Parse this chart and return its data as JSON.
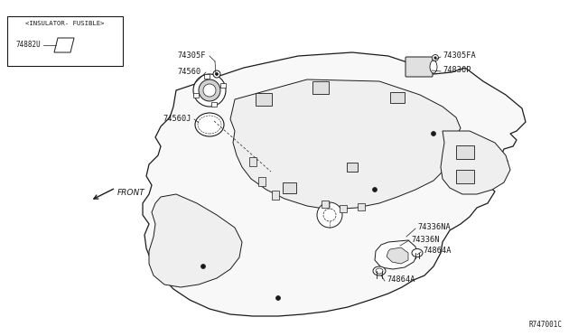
{
  "bg_color": "#ffffff",
  "line_color": "#1a1a1a",
  "title_ref": "R747001C",
  "labels": {
    "insulator_box_title": "<INSULATOR- FUSIBLE>",
    "insulator_part": "74882U",
    "part_74305F": "74305F",
    "part_74560": "74560",
    "part_74560J": "74560J",
    "part_74305FA": "74305FA",
    "part_74836P": "74836P",
    "part_74336NA": "74336NA",
    "part_74336N": "74336N",
    "part_74864A_1": "74864A",
    "part_74864A_2": "74864A",
    "front_label": "FRONT"
  }
}
